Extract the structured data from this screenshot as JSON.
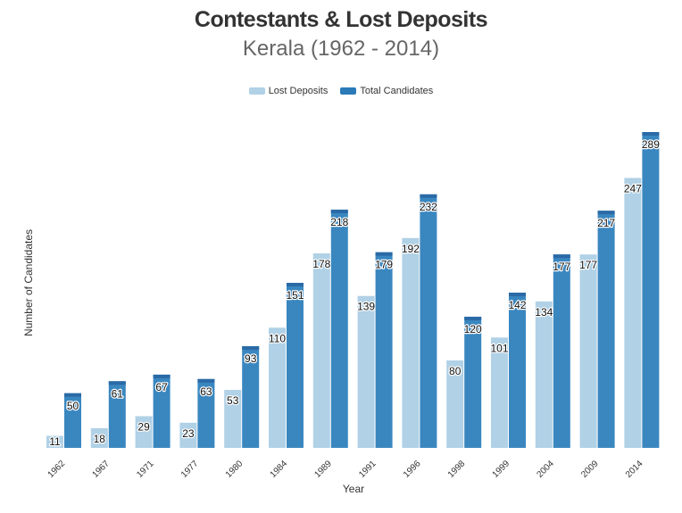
{
  "chart_data": {
    "type": "bar",
    "title": "Contestants & Lost Deposits",
    "subtitle": "Kerala (1962 - 2014)",
    "xlabel": "Year",
    "ylabel": "Number of Candidates",
    "categories": [
      "1962",
      "1967",
      "1971",
      "1977",
      "1980",
      "1984",
      "1989",
      "1991",
      "1996",
      "1998",
      "1999",
      "2004",
      "2009",
      "2014"
    ],
    "series": [
      {
        "name": "Lost Deposits",
        "color": "#b0d1e6",
        "values": [
          11,
          18,
          29,
          23,
          53,
          110,
          178,
          139,
          192,
          80,
          101,
          134,
          177,
          247
        ]
      },
      {
        "name": "Total Candidates",
        "color": "#3a87c0",
        "cap_color": "#2a6aa6",
        "values": [
          50,
          61,
          67,
          63,
          93,
          151,
          218,
          179,
          232,
          120,
          142,
          177,
          217,
          289
        ]
      }
    ],
    "ylim": [
      0,
      289
    ],
    "grid": false,
    "legend_position": "top-center",
    "data_labels": true
  }
}
